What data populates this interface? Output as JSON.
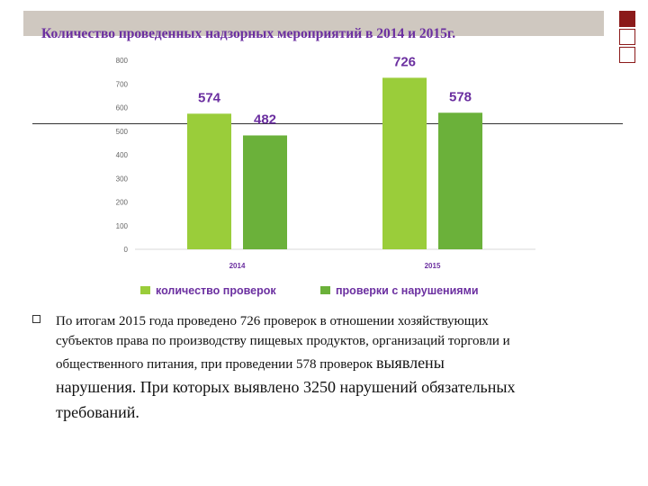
{
  "slide": {
    "title": "Количество проведенных надзорных мероприятий в 2014 и 2015г.",
    "body_line1": "По итогам 2015 года проведено 726 проверок в отношении хозяйствующих",
    "body_line2": "субъектов права по производству пищевых продуктов, организаций торговли и",
    "body_line3a": "общественного питания, при проведении 578 проверок ",
    "body_line3b": "выявлены",
    "body_line4": "нарушения. При которых выявлено  3250 нарушений обязательных",
    "body_line5": "требований."
  },
  "chart_data": {
    "type": "bar",
    "categories": [
      "2014",
      "2015"
    ],
    "series": [
      {
        "name": "количество проверок",
        "values": [
          574,
          726
        ],
        "color": "#9acd3a"
      },
      {
        "name": "проверки с нарушениями",
        "values": [
          482,
          578
        ],
        "color": "#6bb13a"
      }
    ],
    "ylim": [
      0,
      800
    ],
    "yticks": [
      "0",
      "100",
      "200",
      "300",
      "400",
      "500",
      "600",
      "700",
      "800"
    ],
    "grid": false,
    "legend": "bottom"
  }
}
